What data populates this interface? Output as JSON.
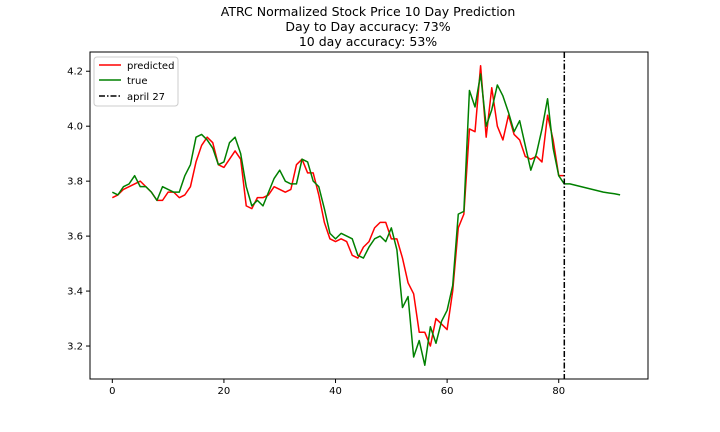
{
  "chart_data": {
    "type": "line",
    "title": "ATRC Normalized Stock Price 10 Day Prediction",
    "subtitle_lines": [
      "Day to Day accuracy: 73%",
      "10 day accuracy: 53%"
    ],
    "xlabel": "",
    "ylabel": "",
    "xlim": [
      -4,
      96
    ],
    "ylim": [
      3.08,
      4.27
    ],
    "xticks": [
      0,
      20,
      40,
      60,
      80
    ],
    "yticks": [
      3.2,
      3.4,
      3.6,
      3.8,
      4.0,
      4.2
    ],
    "ytick_labels": [
      "3.2",
      "3.4",
      "3.6",
      "3.8",
      "4.0",
      "4.2"
    ],
    "grid": false,
    "legend_position": "top-left",
    "series": [
      {
        "name": "predicted",
        "color": "#ff0000",
        "x": [
          0,
          1,
          2,
          3,
          4,
          5,
          6,
          7,
          8,
          9,
          10,
          11,
          12,
          13,
          14,
          15,
          16,
          17,
          18,
          19,
          20,
          21,
          22,
          23,
          24,
          25,
          26,
          27,
          28,
          29,
          30,
          31,
          32,
          33,
          34,
          35,
          36,
          37,
          38,
          39,
          40,
          41,
          42,
          43,
          44,
          45,
          46,
          47,
          48,
          49,
          50,
          51,
          52,
          53,
          54,
          55,
          56,
          57,
          58,
          59,
          60,
          61,
          62,
          63,
          64,
          65,
          66,
          67,
          68,
          69,
          70,
          71,
          72,
          73,
          74,
          75,
          76,
          77,
          78,
          79,
          80,
          81
        ],
        "y": [
          3.74,
          3.75,
          3.77,
          3.78,
          3.79,
          3.8,
          3.78,
          3.76,
          3.73,
          3.73,
          3.76,
          3.76,
          3.74,
          3.75,
          3.78,
          3.87,
          3.93,
          3.96,
          3.94,
          3.86,
          3.85,
          3.88,
          3.91,
          3.88,
          3.71,
          3.7,
          3.74,
          3.74,
          3.75,
          3.78,
          3.77,
          3.76,
          3.77,
          3.86,
          3.88,
          3.83,
          3.83,
          3.75,
          3.65,
          3.59,
          3.58,
          3.59,
          3.58,
          3.53,
          3.52,
          3.56,
          3.58,
          3.63,
          3.65,
          3.65,
          3.59,
          3.59,
          3.52,
          3.43,
          3.39,
          3.25,
          3.25,
          3.2,
          3.3,
          3.28,
          3.26,
          3.4,
          3.63,
          3.68,
          3.99,
          3.98,
          4.22,
          3.96,
          4.14,
          4.0,
          3.95,
          4.04,
          3.97,
          3.95,
          3.89,
          3.88,
          3.89,
          3.87,
          4.04,
          3.95,
          3.82,
          3.82
        ]
      },
      {
        "name": "true",
        "color": "#008000",
        "x": [
          0,
          1,
          2,
          3,
          4,
          5,
          6,
          7,
          8,
          9,
          10,
          11,
          12,
          13,
          14,
          15,
          16,
          17,
          18,
          19,
          20,
          21,
          22,
          23,
          24,
          25,
          26,
          27,
          28,
          29,
          30,
          31,
          32,
          33,
          34,
          35,
          36,
          37,
          38,
          39,
          40,
          41,
          42,
          43,
          44,
          45,
          46,
          47,
          48,
          49,
          50,
          51,
          52,
          53,
          54,
          55,
          56,
          57,
          58,
          59,
          60,
          61,
          62,
          63,
          64,
          65,
          66,
          67,
          68,
          69,
          70,
          71,
          72,
          73,
          74,
          75,
          76,
          77,
          78,
          79,
          80,
          81,
          82,
          83,
          84,
          85,
          86,
          87,
          88,
          89,
          90,
          91
        ],
        "y": [
          3.76,
          3.75,
          3.78,
          3.79,
          3.82,
          3.78,
          3.78,
          3.76,
          3.73,
          3.78,
          3.77,
          3.76,
          3.76,
          3.82,
          3.86,
          3.96,
          3.97,
          3.95,
          3.92,
          3.86,
          3.87,
          3.94,
          3.96,
          3.9,
          3.78,
          3.71,
          3.73,
          3.71,
          3.76,
          3.81,
          3.84,
          3.8,
          3.79,
          3.79,
          3.88,
          3.87,
          3.8,
          3.78,
          3.7,
          3.61,
          3.59,
          3.61,
          3.6,
          3.59,
          3.53,
          3.52,
          3.56,
          3.59,
          3.6,
          3.58,
          3.63,
          3.55,
          3.34,
          3.38,
          3.16,
          3.22,
          3.13,
          3.27,
          3.21,
          3.29,
          3.33,
          3.42,
          3.68,
          3.69,
          4.13,
          4.07,
          4.19,
          4.0,
          4.06,
          4.15,
          4.11,
          4.05,
          3.98,
          4.02,
          3.93,
          3.84,
          3.9,
          3.99,
          4.1,
          3.92,
          3.82,
          3.79,
          3.79,
          3.785,
          3.78,
          3.775,
          3.77,
          3.765,
          3.76,
          3.757,
          3.754,
          3.75
        ]
      }
    ],
    "vline": {
      "x": 81,
      "label": "april 27",
      "color": "#000000",
      "style": "dashdot"
    }
  }
}
